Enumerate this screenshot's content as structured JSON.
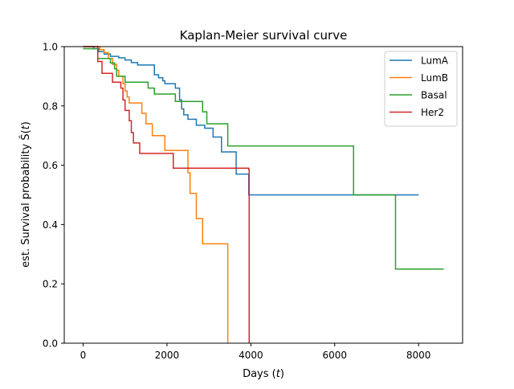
{
  "chart_data": {
    "type": "line",
    "step": true,
    "title": "Kaplan-Meier survival curve",
    "xlabel": "Days (t)",
    "ylabel": "est. Survival probability Ŝ(t)",
    "xlim": [
      -450,
      9050
    ],
    "ylim": [
      0,
      1
    ],
    "xticks": [
      0,
      2000,
      4000,
      6000,
      8000
    ],
    "yticks": [
      0.0,
      0.2,
      0.4,
      0.6,
      0.8,
      1.0
    ],
    "xtick_labels": [
      "0",
      "2000",
      "4000",
      "6000",
      "8000"
    ],
    "ytick_labels": [
      "0.0",
      "0.2",
      "0.4",
      "0.6",
      "0.8",
      "1.0"
    ],
    "grid": false,
    "legend": "top-right",
    "series": [
      {
        "name": "LumA",
        "color": "#1f77b4",
        "points": [
          [
            0,
            1.0
          ],
          [
            250,
            0.993
          ],
          [
            370,
            0.983
          ],
          [
            500,
            0.975
          ],
          [
            650,
            0.967
          ],
          [
            850,
            0.962
          ],
          [
            1000,
            0.955
          ],
          [
            1150,
            0.946
          ],
          [
            1300,
            0.938
          ],
          [
            1450,
            0.938
          ],
          [
            1600,
            0.938
          ],
          [
            1700,
            0.905
          ],
          [
            1800,
            0.895
          ],
          [
            1900,
            0.885
          ],
          [
            1950,
            0.875
          ],
          [
            2200,
            0.86
          ],
          [
            2300,
            0.82
          ],
          [
            2350,
            0.79
          ],
          [
            2400,
            0.77
          ],
          [
            2500,
            0.755
          ],
          [
            2700,
            0.735
          ],
          [
            2900,
            0.725
          ],
          [
            3100,
            0.695
          ],
          [
            3300,
            0.645
          ],
          [
            3650,
            0.57
          ],
          [
            3950,
            0.5
          ],
          [
            8000,
            0.5
          ]
        ]
      },
      {
        "name": "LumB",
        "color": "#ff7f0e",
        "points": [
          [
            0,
            1.0
          ],
          [
            400,
            0.99
          ],
          [
            500,
            0.98
          ],
          [
            600,
            0.96
          ],
          [
            700,
            0.94
          ],
          [
            800,
            0.92
          ],
          [
            850,
            0.9
          ],
          [
            950,
            0.875
          ],
          [
            1000,
            0.85
          ],
          [
            1050,
            0.83
          ],
          [
            1100,
            0.81
          ],
          [
            1350,
            0.81
          ],
          [
            1400,
            0.775
          ],
          [
            1500,
            0.74
          ],
          [
            1650,
            0.7
          ],
          [
            1950,
            0.65
          ],
          [
            2500,
            0.575
          ],
          [
            2550,
            0.505
          ],
          [
            2700,
            0.42
          ],
          [
            2850,
            0.335
          ],
          [
            3450,
            0.0
          ]
        ]
      },
      {
        "name": "Basal",
        "color": "#2ca02c",
        "points": [
          [
            0,
            0.993
          ],
          [
            350,
            0.96
          ],
          [
            650,
            0.945
          ],
          [
            750,
            0.925
          ],
          [
            800,
            0.9
          ],
          [
            1000,
            0.88
          ],
          [
            1550,
            0.86
          ],
          [
            1700,
            0.84
          ],
          [
            2200,
            0.815
          ],
          [
            2850,
            0.78
          ],
          [
            2950,
            0.74
          ],
          [
            3450,
            0.665
          ],
          [
            6450,
            0.5
          ],
          [
            7450,
            0.25
          ],
          [
            8600,
            0.25
          ]
        ]
      },
      {
        "name": "Her2",
        "color": "#d62728",
        "points": [
          [
            0,
            1.0
          ],
          [
            350,
            0.95
          ],
          [
            450,
            0.91
          ],
          [
            700,
            0.88
          ],
          [
            900,
            0.86
          ],
          [
            950,
            0.82
          ],
          [
            1000,
            0.785
          ],
          [
            1100,
            0.75
          ],
          [
            1150,
            0.71
          ],
          [
            1200,
            0.675
          ],
          [
            1350,
            0.64
          ],
          [
            2150,
            0.59
          ],
          [
            3950,
            0.585
          ],
          [
            3960,
            0.0
          ]
        ]
      }
    ]
  }
}
